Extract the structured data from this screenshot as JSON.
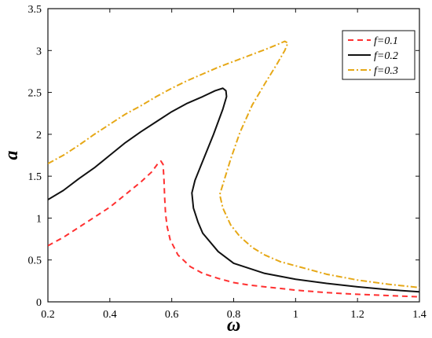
{
  "chart_data": {
    "type": "line",
    "title": "",
    "xlabel": "ω",
    "ylabel": "a",
    "xlim": [
      0.2,
      1.4
    ],
    "ylim": [
      0,
      3.5
    ],
    "xticks": [
      "0.2",
      "0.4",
      "0.6",
      "0.8",
      "1",
      "1.2",
      "1.4"
    ],
    "yticks": [
      "0",
      "0.5",
      "1",
      "1.5",
      "2",
      "2.5",
      "3",
      "3.5"
    ],
    "grid": false,
    "legend_position": "top-right",
    "series": [
      {
        "name": "f=0.1",
        "color": "#ff3030",
        "line_style": "dashed",
        "points": [
          [
            0.2,
            0.67
          ],
          [
            0.25,
            0.77
          ],
          [
            0.3,
            0.89
          ],
          [
            0.35,
            1.01
          ],
          [
            0.4,
            1.13
          ],
          [
            0.45,
            1.28
          ],
          [
            0.5,
            1.43
          ],
          [
            0.535,
            1.55
          ],
          [
            0.555,
            1.65
          ],
          [
            0.565,
            1.68
          ],
          [
            0.572,
            1.64
          ],
          [
            0.575,
            1.45
          ],
          [
            0.577,
            1.25
          ],
          [
            0.58,
            1.05
          ],
          [
            0.585,
            0.9
          ],
          [
            0.595,
            0.74
          ],
          [
            0.62,
            0.56
          ],
          [
            0.66,
            0.42
          ],
          [
            0.7,
            0.34
          ],
          [
            0.75,
            0.28
          ],
          [
            0.8,
            0.23
          ],
          [
            0.85,
            0.2
          ],
          [
            0.9,
            0.18
          ],
          [
            1.0,
            0.14
          ],
          [
            1.1,
            0.11
          ],
          [
            1.2,
            0.09
          ],
          [
            1.3,
            0.075
          ],
          [
            1.4,
            0.06
          ]
        ]
      },
      {
        "name": "f=0.2",
        "color": "#111111",
        "line_style": "solid",
        "points": [
          [
            0.2,
            1.22
          ],
          [
            0.25,
            1.33
          ],
          [
            0.3,
            1.47
          ],
          [
            0.35,
            1.6
          ],
          [
            0.4,
            1.75
          ],
          [
            0.45,
            1.9
          ],
          [
            0.5,
            2.03
          ],
          [
            0.55,
            2.15
          ],
          [
            0.6,
            2.27
          ],
          [
            0.65,
            2.37
          ],
          [
            0.7,
            2.45
          ],
          [
            0.74,
            2.52
          ],
          [
            0.765,
            2.55
          ],
          [
            0.775,
            2.52
          ],
          [
            0.777,
            2.45
          ],
          [
            0.765,
            2.3
          ],
          [
            0.735,
            2.0
          ],
          [
            0.7,
            1.68
          ],
          [
            0.675,
            1.45
          ],
          [
            0.665,
            1.3
          ],
          [
            0.67,
            1.12
          ],
          [
            0.685,
            0.95
          ],
          [
            0.7,
            0.82
          ],
          [
            0.75,
            0.6
          ],
          [
            0.8,
            0.46
          ],
          [
            0.9,
            0.34
          ],
          [
            1.0,
            0.27
          ],
          [
            1.1,
            0.22
          ],
          [
            1.2,
            0.18
          ],
          [
            1.3,
            0.145
          ],
          [
            1.4,
            0.12
          ]
        ]
      },
      {
        "name": "f=0.3",
        "color": "#e6a817",
        "line_style": "dashdot",
        "points": [
          [
            0.2,
            1.65
          ],
          [
            0.25,
            1.75
          ],
          [
            0.3,
            1.87
          ],
          [
            0.35,
            2.0
          ],
          [
            0.4,
            2.12
          ],
          [
            0.45,
            2.24
          ],
          [
            0.5,
            2.34
          ],
          [
            0.55,
            2.45
          ],
          [
            0.6,
            2.55
          ],
          [
            0.65,
            2.64
          ],
          [
            0.7,
            2.72
          ],
          [
            0.75,
            2.8
          ],
          [
            0.8,
            2.87
          ],
          [
            0.85,
            2.94
          ],
          [
            0.9,
            3.01
          ],
          [
            0.94,
            3.07
          ],
          [
            0.965,
            3.11
          ],
          [
            0.975,
            3.09
          ],
          [
            0.965,
            3.0
          ],
          [
            0.94,
            2.84
          ],
          [
            0.9,
            2.6
          ],
          [
            0.86,
            2.35
          ],
          [
            0.82,
            2.02
          ],
          [
            0.79,
            1.7
          ],
          [
            0.765,
            1.4
          ],
          [
            0.755,
            1.28
          ],
          [
            0.765,
            1.12
          ],
          [
            0.79,
            0.92
          ],
          [
            0.82,
            0.78
          ],
          [
            0.86,
            0.65
          ],
          [
            0.9,
            0.56
          ],
          [
            0.95,
            0.48
          ],
          [
            1.0,
            0.43
          ],
          [
            1.1,
            0.33
          ],
          [
            1.2,
            0.26
          ],
          [
            1.3,
            0.21
          ],
          [
            1.4,
            0.17
          ]
        ]
      }
    ]
  }
}
